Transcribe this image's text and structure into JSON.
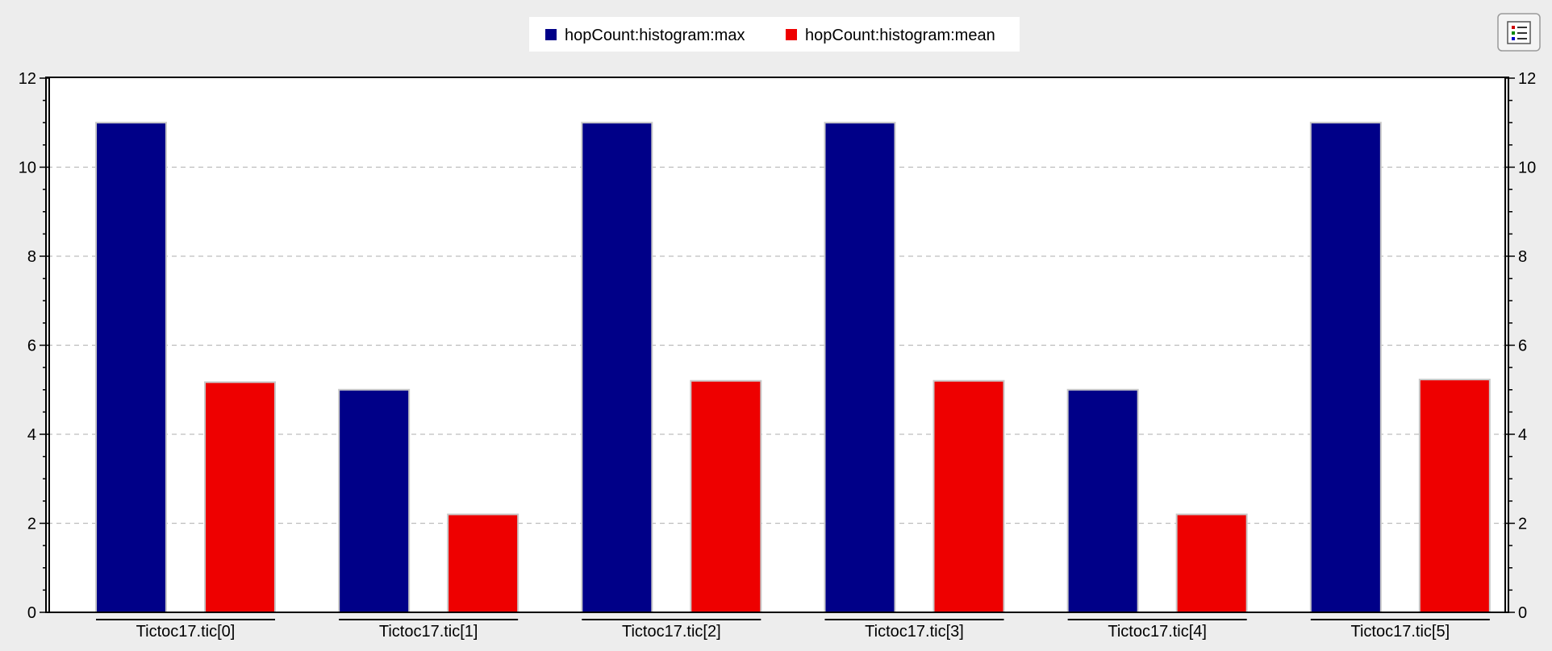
{
  "chart_data": {
    "type": "bar",
    "categories": [
      "Tictoc17.tic[0]",
      "Tictoc17.tic[1]",
      "Tictoc17.tic[2]",
      "Tictoc17.tic[3]",
      "Tictoc17.tic[4]",
      "Tictoc17.tic[5]"
    ],
    "series": [
      {
        "name": "hopCount:histogram:max",
        "color": "#000088",
        "values": [
          11,
          5,
          11,
          11,
          5,
          11
        ]
      },
      {
        "name": "hopCount:histogram:mean",
        "color": "#ee0000",
        "values": [
          5.17,
          2.2,
          5.2,
          5.2,
          2.2,
          5.23
        ]
      }
    ],
    "ylim": [
      0,
      12
    ],
    "y_ticks": [
      "0",
      "2",
      "4",
      "6",
      "8",
      "10",
      "12"
    ],
    "y_tick_values": [
      0,
      2,
      4,
      6,
      8,
      10,
      12
    ],
    "secondary_y_axis": true,
    "grid": "horizontal-dashed",
    "legend_position": "top-center",
    "title": "",
    "xlabel": "",
    "ylabel": ""
  },
  "toolbar": {
    "legend_toggle_icon": "legend-list-icon"
  },
  "colors": {
    "background": "#ededed",
    "plot_area": "#ffffff",
    "grid": "#bdbdbd"
  }
}
